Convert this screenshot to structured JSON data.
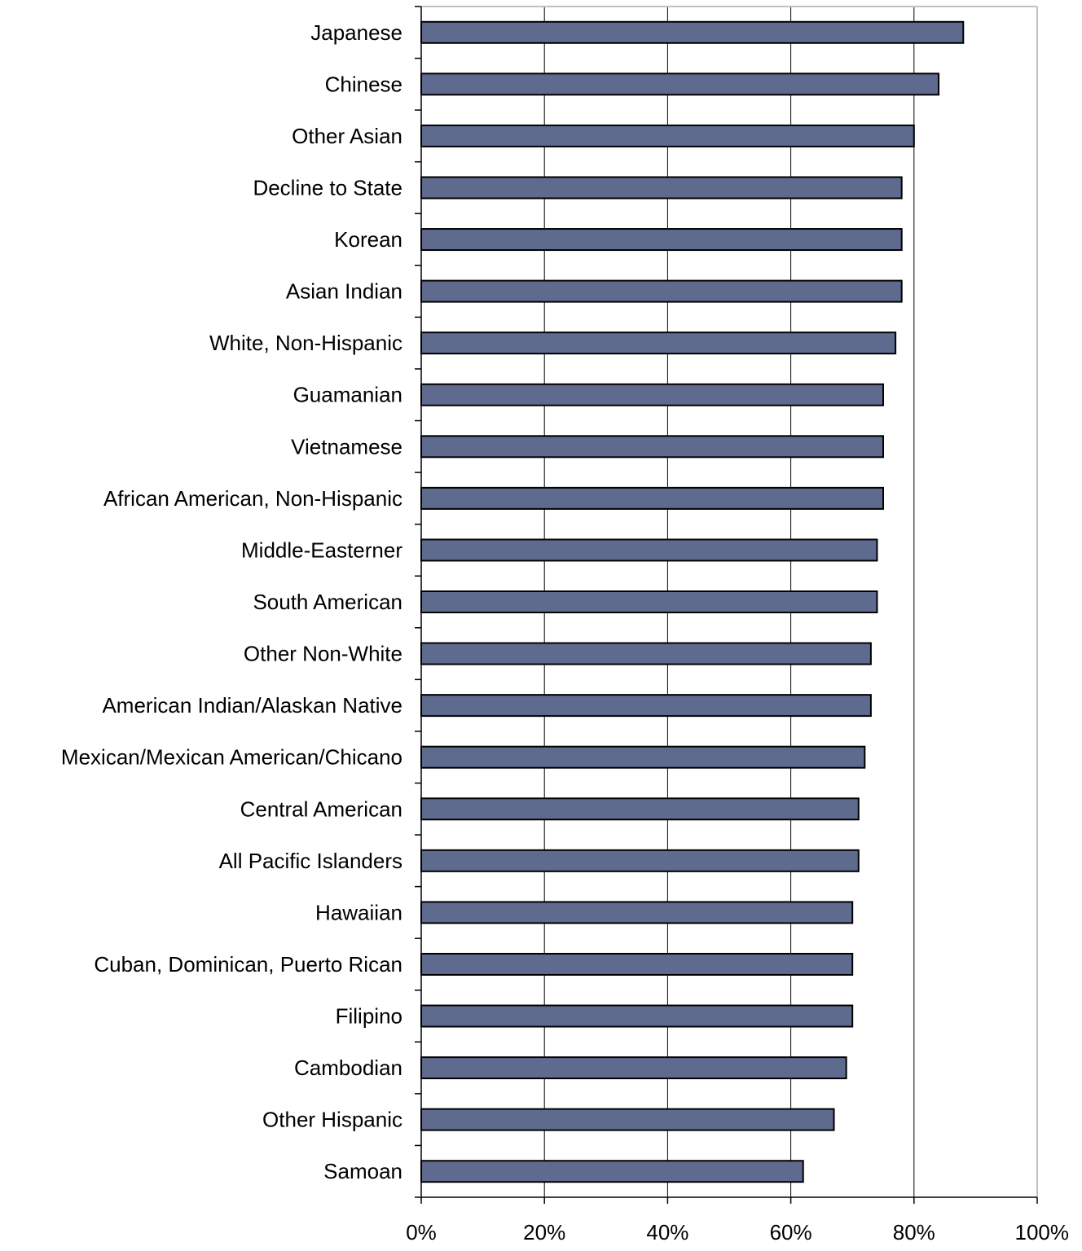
{
  "chart_data": {
    "type": "bar",
    "orientation": "horizontal",
    "categories": [
      "Japanese",
      "Chinese",
      "Other Asian",
      "Decline to State",
      "Korean",
      "Asian Indian",
      "White, Non-Hispanic",
      "Guamanian",
      "Vietnamese",
      "African American, Non-Hispanic",
      "Middle-Easterner",
      "South American",
      "Other Non-White",
      "American Indian/Alaskan Native",
      "Mexican/Mexican American/Chicano",
      "Central American",
      "All Pacific Islanders",
      "Hawaiian",
      "Cuban, Dominican, Puerto Rican",
      "Filipino",
      "Cambodian",
      "Other Hispanic",
      "Samoan"
    ],
    "values": [
      88,
      84,
      80,
      78,
      78,
      78,
      77,
      75,
      75,
      75,
      74,
      74,
      73,
      73,
      72,
      71,
      71,
      70,
      70,
      70,
      69,
      67,
      62
    ],
    "xlim": [
      0,
      100
    ],
    "xticks": [
      0,
      20,
      40,
      60,
      80,
      100
    ],
    "xtick_labels": [
      "0%",
      "20%",
      "40%",
      "60%",
      "80%",
      "100%"
    ],
    "title": "",
    "xlabel": "",
    "ylabel": "",
    "grid": "vertical",
    "legend": "none",
    "colors": {
      "bar_fill": "#5f6a8f",
      "bar_edge": "#000000",
      "gridline": "#000000",
      "plot_border": "#c0c0c0",
      "axis": "#000000",
      "text": "#000000"
    }
  }
}
